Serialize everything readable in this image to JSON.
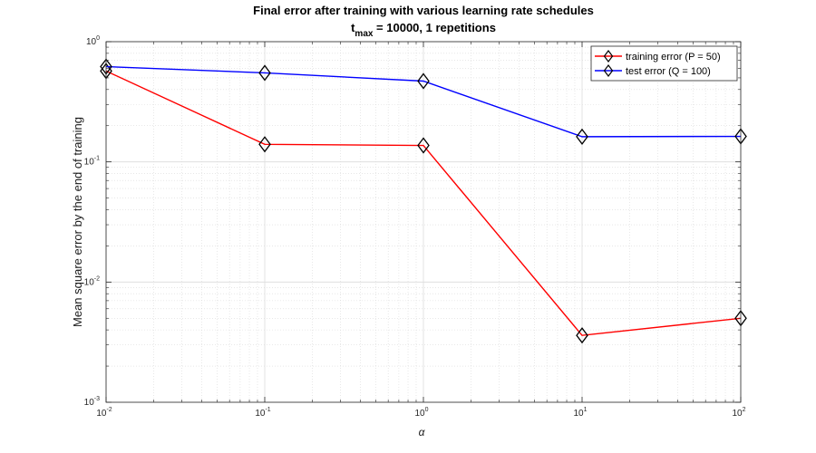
{
  "chart_data": {
    "type": "line",
    "title_line1": "Final error after training with various learning rate schedules",
    "title_line2_prefix": "t",
    "title_line2_sub": "max",
    "title_line2_rest": " = 10000, 1 repetitions",
    "xlabel": "α",
    "ylabel": "Mean square error by the end of training",
    "x_scale": "log",
    "y_scale": "log",
    "xlim": [
      0.01,
      100
    ],
    "ylim": [
      0.001,
      1
    ],
    "grid": true,
    "legend_position": "top-right",
    "x_ticks": [
      {
        "value": 0.01,
        "base": "10",
        "exp": "-2"
      },
      {
        "value": 0.1,
        "base": "10",
        "exp": "-1"
      },
      {
        "value": 1,
        "base": "10",
        "exp": "0"
      },
      {
        "value": 10,
        "base": "10",
        "exp": "1"
      },
      {
        "value": 100,
        "base": "10",
        "exp": "2"
      }
    ],
    "y_ticks": [
      {
        "value": 0.001,
        "base": "10",
        "exp": "-3"
      },
      {
        "value": 0.01,
        "base": "10",
        "exp": "-2"
      },
      {
        "value": 0.1,
        "base": "10",
        "exp": "-1"
      },
      {
        "value": 1,
        "base": "10",
        "exp": "0"
      }
    ],
    "x": [
      0.01,
      0.1,
      1,
      10,
      100
    ],
    "series": [
      {
        "name": "training error (P = 50)",
        "color": "#ff0000",
        "marker": "diamond",
        "values": [
          0.57,
          0.14,
          0.137,
          0.0036,
          0.005
        ]
      },
      {
        "name": "test error (Q = 100)",
        "color": "#0000ff",
        "marker": "diamond",
        "values": [
          0.62,
          0.55,
          0.47,
          0.162,
          0.163
        ]
      }
    ]
  }
}
